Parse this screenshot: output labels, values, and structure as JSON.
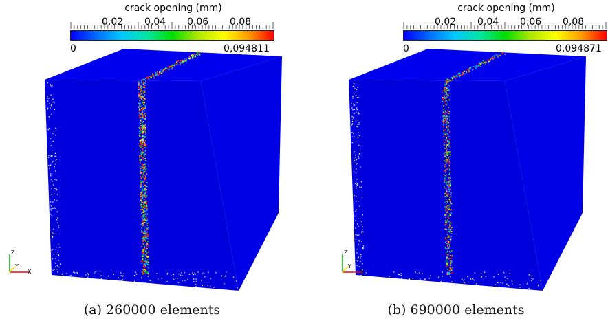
{
  "colorbar": {
    "title": "crack opening (mm)",
    "tick_labels": [
      "0,02",
      "0,04",
      "0,06",
      "0,08"
    ],
    "tick_values": [
      0.02,
      0.04,
      0.06,
      0.08
    ]
  },
  "panels": [
    {
      "min_label": "0",
      "max_label": "0,094811",
      "max_value": 0.094811,
      "caption": "(a) 260000 elements"
    },
    {
      "min_label": "0",
      "max_label": "0,094871",
      "max_value": 0.094871,
      "caption": "(b) 690000 elements"
    }
  ],
  "axes_labels": {
    "z": "Z",
    "y": "Y",
    "x": "X"
  },
  "colors": {
    "cube": "#0000ee",
    "axis_x": "#ff0000",
    "axis_y": "#ffd000",
    "axis_z": "#00aa00"
  }
}
